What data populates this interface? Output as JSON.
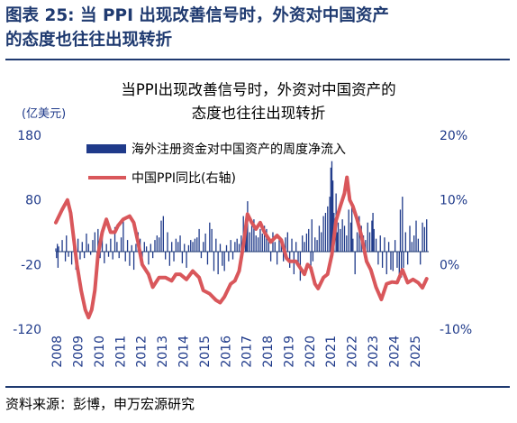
{
  "figure": {
    "title_line1": "图表 25: 当 PPI 出现改善信号时，外资对中国资产",
    "title_line2": "的态度也往往出现转折",
    "source": "资料来源：彭博，申万宏源研究"
  },
  "colors": {
    "bar": "#1f3a8a",
    "line": "#d9575b",
    "axis": "#1f3a70",
    "text": "#1f3a8a"
  },
  "chart_data": {
    "type": "bar+line",
    "title_lines": [
      "当PPI出现改善信号时，外资对中国资产的",
      "态度也往往出现转折"
    ],
    "unit_left": "(亿美元)",
    "left_axis": {
      "min": -120,
      "max": 180,
      "ticks": [
        "180",
        "80",
        "-20",
        "-120"
      ]
    },
    "right_axis": {
      "min": -10,
      "max": 20,
      "ticks": [
        "20%",
        "10%",
        "0%",
        "-10%"
      ]
    },
    "x_labels": [
      "2008",
      "2009",
      "2010",
      "2011",
      "2012",
      "2013",
      "2014",
      "2015",
      "2016",
      "2017",
      "2018",
      "2019",
      "2020",
      "2021",
      "2022",
      "2023",
      "2024",
      "2025"
    ],
    "x_range": [
      2008.0,
      2025.7
    ],
    "legend": [
      "海外注册资金对中国资产的周度净流入",
      "中国PPI同比(右轴)"
    ],
    "legend_position": "top-center",
    "series": [
      {
        "name": "中国PPI同比(右轴)",
        "axis": "right",
        "points": [
          [
            2008.0,
            6.5
          ],
          [
            2008.3,
            8.5
          ],
          [
            2008.55,
            10.0
          ],
          [
            2008.7,
            8.0
          ],
          [
            2008.85,
            4.0
          ],
          [
            2009.0,
            0.0
          ],
          [
            2009.2,
            -4.0
          ],
          [
            2009.4,
            -7.0
          ],
          [
            2009.55,
            -8.2
          ],
          [
            2009.7,
            -7.0
          ],
          [
            2009.85,
            -4.0
          ],
          [
            2010.0,
            1.5
          ],
          [
            2010.2,
            5.0
          ],
          [
            2010.4,
            7.0
          ],
          [
            2010.6,
            5.0
          ],
          [
            2010.8,
            5.0
          ],
          [
            2010.95,
            6.0
          ],
          [
            2011.2,
            7.0
          ],
          [
            2011.5,
            7.5
          ],
          [
            2011.7,
            6.5
          ],
          [
            2011.9,
            3.5
          ],
          [
            2012.1,
            0.0
          ],
          [
            2012.4,
            -1.5
          ],
          [
            2012.6,
            -3.5
          ],
          [
            2012.9,
            -2.0
          ],
          [
            2013.2,
            -2.0
          ],
          [
            2013.5,
            -2.5
          ],
          [
            2013.7,
            -1.5
          ],
          [
            2013.9,
            -1.5
          ],
          [
            2014.2,
            -2.3
          ],
          [
            2014.5,
            -1.0
          ],
          [
            2014.8,
            -2.0
          ],
          [
            2015.0,
            -4.0
          ],
          [
            2015.3,
            -4.5
          ],
          [
            2015.6,
            -5.5
          ],
          [
            2015.8,
            -5.9
          ],
          [
            2016.0,
            -5.0
          ],
          [
            2016.3,
            -3.0
          ],
          [
            2016.5,
            -2.5
          ],
          [
            2016.7,
            -1.0
          ],
          [
            2016.9,
            3.0
          ],
          [
            2017.1,
            7.8
          ],
          [
            2017.3,
            6.5
          ],
          [
            2017.5,
            5.5
          ],
          [
            2017.7,
            6.5
          ],
          [
            2017.9,
            5.0
          ],
          [
            2018.2,
            3.5
          ],
          [
            2018.5,
            4.5
          ],
          [
            2018.7,
            3.8
          ],
          [
            2018.95,
            1.0
          ],
          [
            2019.1,
            0.5
          ],
          [
            2019.4,
            0.5
          ],
          [
            2019.6,
            -0.5
          ],
          [
            2019.8,
            -1.5
          ],
          [
            2019.95,
            0.0
          ],
          [
            2020.1,
            -0.5
          ],
          [
            2020.3,
            -3.0
          ],
          [
            2020.45,
            -3.7
          ],
          [
            2020.7,
            -2.0
          ],
          [
            2020.9,
            -1.5
          ],
          [
            2021.1,
            1.5
          ],
          [
            2021.3,
            6.8
          ],
          [
            2021.5,
            9.0
          ],
          [
            2021.7,
            11.0
          ],
          [
            2021.82,
            13.5
          ],
          [
            2021.95,
            10.0
          ],
          [
            2022.1,
            9.0
          ],
          [
            2022.3,
            7.0
          ],
          [
            2022.5,
            4.5
          ],
          [
            2022.75,
            0.5
          ],
          [
            2022.95,
            -0.8
          ],
          [
            2023.2,
            -3.5
          ],
          [
            2023.45,
            -5.4
          ],
          [
            2023.7,
            -3.0
          ],
          [
            2023.95,
            -2.7
          ],
          [
            2024.2,
            -2.8
          ],
          [
            2024.45,
            -0.8
          ],
          [
            2024.7,
            -2.8
          ],
          [
            2024.95,
            -2.3
          ],
          [
            2025.2,
            -2.8
          ],
          [
            2025.4,
            -3.6
          ],
          [
            2025.6,
            -2.2
          ]
        ]
      },
      {
        "name": "海外注册资金对中国资产的周度净流入",
        "axis": "left",
        "bars": [
          [
            2008.0,
            5
          ],
          [
            2008.03,
            -10
          ],
          [
            2008.07,
            12
          ],
          [
            2008.1,
            -25
          ],
          [
            2008.13,
            8
          ],
          [
            2008.3,
            18
          ],
          [
            2008.45,
            -15
          ],
          [
            2008.5,
            25
          ],
          [
            2008.6,
            -8
          ],
          [
            2008.75,
            -20
          ],
          [
            2008.85,
            10
          ],
          [
            2008.95,
            -28
          ],
          [
            2009.05,
            20
          ],
          [
            2009.15,
            -12
          ],
          [
            2009.25,
            15
          ],
          [
            2009.35,
            -10
          ],
          [
            2009.45,
            28
          ],
          [
            2009.55,
            12
          ],
          [
            2009.65,
            -5
          ],
          [
            2009.75,
            18
          ],
          [
            2009.85,
            30
          ],
          [
            2009.95,
            -15
          ],
          [
            2010.0,
            35
          ],
          [
            2010.1,
            -10
          ],
          [
            2010.2,
            25
          ],
          [
            2010.3,
            -18
          ],
          [
            2010.4,
            12
          ],
          [
            2010.5,
            -8
          ],
          [
            2010.6,
            20
          ],
          [
            2010.7,
            -12
          ],
          [
            2010.8,
            38
          ],
          [
            2010.9,
            15
          ],
          [
            2011.0,
            -10
          ],
          [
            2011.1,
            22
          ],
          [
            2011.2,
            48
          ],
          [
            2011.3,
            -15
          ],
          [
            2011.4,
            18
          ],
          [
            2011.5,
            -22
          ],
          [
            2011.6,
            10
          ],
          [
            2011.7,
            -28
          ],
          [
            2011.8,
            12
          ],
          [
            2011.9,
            30
          ],
          [
            2012.0,
            20
          ],
          [
            2012.1,
            -15
          ],
          [
            2012.2,
            15
          ],
          [
            2012.3,
            8
          ],
          [
            2012.4,
            -20
          ],
          [
            2012.5,
            12
          ],
          [
            2012.6,
            -10
          ],
          [
            2012.7,
            18
          ],
          [
            2012.8,
            25
          ],
          [
            2012.9,
            22
          ],
          [
            2013.0,
            48
          ],
          [
            2013.1,
            55
          ],
          [
            2013.2,
            -12
          ],
          [
            2013.3,
            30
          ],
          [
            2013.4,
            -22
          ],
          [
            2013.5,
            15
          ],
          [
            2013.6,
            -15
          ],
          [
            2013.7,
            20
          ],
          [
            2013.8,
            15
          ],
          [
            2013.9,
            25
          ],
          [
            2014.0,
            -18
          ],
          [
            2014.1,
            12
          ],
          [
            2014.2,
            -25
          ],
          [
            2014.3,
            10
          ],
          [
            2014.4,
            18
          ],
          [
            2014.5,
            15
          ],
          [
            2014.6,
            20
          ],
          [
            2014.7,
            22
          ],
          [
            2014.8,
            35
          ],
          [
            2014.9,
            -10
          ],
          [
            2015.0,
            15
          ],
          [
            2015.1,
            28
          ],
          [
            2015.2,
            -20
          ],
          [
            2015.3,
            45
          ],
          [
            2015.4,
            35
          ],
          [
            2015.5,
            -30
          ],
          [
            2015.6,
            20
          ],
          [
            2015.7,
            -35
          ],
          [
            2015.8,
            12
          ],
          [
            2015.9,
            -22
          ],
          [
            2016.0,
            -30
          ],
          [
            2016.1,
            10
          ],
          [
            2016.2,
            -15
          ],
          [
            2016.3,
            18
          ],
          [
            2016.4,
            -12
          ],
          [
            2016.5,
            15
          ],
          [
            2016.6,
            20
          ],
          [
            2016.7,
            12
          ],
          [
            2016.8,
            25
          ],
          [
            2016.9,
            55
          ],
          [
            2017.0,
            35
          ],
          [
            2017.05,
            42
          ],
          [
            2017.1,
            78
          ],
          [
            2017.2,
            30
          ],
          [
            2017.3,
            40
          ],
          [
            2017.4,
            50
          ],
          [
            2017.5,
            25
          ],
          [
            2017.6,
            22
          ],
          [
            2017.7,
            35
          ],
          [
            2017.8,
            28
          ],
          [
            2017.9,
            40
          ],
          [
            2018.0,
            35
          ],
          [
            2018.1,
            20
          ],
          [
            2018.2,
            -15
          ],
          [
            2018.3,
            30
          ],
          [
            2018.4,
            15
          ],
          [
            2018.5,
            -20
          ],
          [
            2018.6,
            18
          ],
          [
            2018.7,
            12
          ],
          [
            2018.8,
            -15
          ],
          [
            2018.9,
            22
          ],
          [
            2019.0,
            30
          ],
          [
            2019.1,
            -25
          ],
          [
            2019.2,
            20
          ],
          [
            2019.3,
            -35
          ],
          [
            2019.4,
            15
          ],
          [
            2019.5,
            -18
          ],
          [
            2019.6,
            -45
          ],
          [
            2019.7,
            25
          ],
          [
            2019.8,
            15
          ],
          [
            2019.9,
            28
          ],
          [
            2020.0,
            35
          ],
          [
            2020.1,
            -30
          ],
          [
            2020.15,
            50
          ],
          [
            2020.2,
            -15
          ],
          [
            2020.3,
            22
          ],
          [
            2020.4,
            18
          ],
          [
            2020.5,
            40
          ],
          [
            2020.6,
            30
          ],
          [
            2020.7,
            55
          ],
          [
            2020.8,
            60
          ],
          [
            2020.9,
            70
          ],
          [
            2021.0,
            85
          ],
          [
            2021.05,
            130
          ],
          [
            2021.1,
            140
          ],
          [
            2021.15,
            110
          ],
          [
            2021.2,
            60
          ],
          [
            2021.3,
            90
          ],
          [
            2021.35,
            30
          ],
          [
            2021.4,
            45
          ],
          [
            2021.5,
            35
          ],
          [
            2021.6,
            50
          ],
          [
            2021.7,
            40
          ],
          [
            2021.8,
            25
          ],
          [
            2021.9,
            65
          ],
          [
            2022.0,
            45
          ],
          [
            2022.05,
            75
          ],
          [
            2022.1,
            20
          ],
          [
            2022.2,
            -35
          ],
          [
            2022.3,
            30
          ],
          [
            2022.4,
            55
          ],
          [
            2022.5,
            40
          ],
          [
            2022.6,
            25
          ],
          [
            2022.7,
            18
          ],
          [
            2022.8,
            45
          ],
          [
            2022.9,
            30
          ],
          [
            2023.0,
            48
          ],
          [
            2023.05,
            60
          ],
          [
            2023.1,
            35
          ],
          [
            2023.2,
            20
          ],
          [
            2023.3,
            -20
          ],
          [
            2023.4,
            25
          ],
          [
            2023.5,
            -25
          ],
          [
            2023.6,
            22
          ],
          [
            2023.7,
            -35
          ],
          [
            2023.8,
            15
          ],
          [
            2023.9,
            -28
          ],
          [
            2024.0,
            -30
          ],
          [
            2024.1,
            18
          ],
          [
            2024.2,
            -25
          ],
          [
            2024.3,
            -35
          ],
          [
            2024.35,
            65
          ],
          [
            2024.4,
            -40
          ],
          [
            2024.45,
            85
          ],
          [
            2024.5,
            -25
          ],
          [
            2024.6,
            30
          ],
          [
            2024.7,
            -20
          ],
          [
            2024.8,
            40
          ],
          [
            2024.9,
            15
          ],
          [
            2025.0,
            25
          ],
          [
            2025.1,
            48
          ],
          [
            2025.2,
            20
          ],
          [
            2025.3,
            -20
          ],
          [
            2025.4,
            45
          ],
          [
            2025.5,
            38
          ],
          [
            2025.6,
            50
          ]
        ]
      }
    ]
  }
}
